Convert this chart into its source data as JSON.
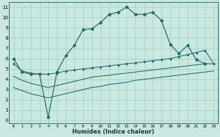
{
  "xlabel": "Humidex (Indice chaleur)",
  "background_color": "#c8e8e0",
  "grid_color": "#a0ccc8",
  "line_color": "#1e6e62",
  "xlim": [
    -0.5,
    23.5
  ],
  "ylim": [
    -0.3,
    11.5
  ],
  "xticks": [
    0,
    1,
    2,
    3,
    4,
    5,
    6,
    7,
    8,
    9,
    10,
    11,
    12,
    13,
    14,
    15,
    16,
    17,
    18,
    19,
    20,
    21,
    22,
    23
  ],
  "yticks": [
    0,
    1,
    2,
    3,
    4,
    5,
    6,
    7,
    8,
    9,
    10,
    11
  ],
  "line1_x": [
    0,
    1,
    2,
    3,
    4,
    5,
    6,
    7,
    8,
    9,
    10,
    11,
    12,
    13,
    14,
    15,
    16,
    17,
    18,
    19,
    20,
    21,
    22
  ],
  "line1_y": [
    6.0,
    4.7,
    4.5,
    4.5,
    0.3,
    4.7,
    6.3,
    7.3,
    8.8,
    8.9,
    9.5,
    10.3,
    10.5,
    11.0,
    10.3,
    10.3,
    10.5,
    9.7,
    7.4,
    6.5,
    7.3,
    5.9,
    5.5
  ],
  "line2_x": [
    0,
    1,
    2,
    3,
    4,
    5,
    6,
    7,
    8,
    9,
    10,
    11,
    12,
    13,
    14,
    15,
    16,
    17,
    18,
    19,
    20,
    21,
    22,
    23
  ],
  "line2_y": [
    5.5,
    4.8,
    4.6,
    4.5,
    4.5,
    4.6,
    4.8,
    4.9,
    5.0,
    5.1,
    5.2,
    5.3,
    5.4,
    5.5,
    5.6,
    5.7,
    5.8,
    5.9,
    6.0,
    6.2,
    6.4,
    6.6,
    6.8,
    5.5
  ],
  "line3_x": [
    0,
    1,
    2,
    3,
    4,
    5,
    6,
    7,
    8,
    9,
    10,
    11,
    12,
    13,
    14,
    15,
    16,
    17,
    18,
    19,
    20,
    21,
    22,
    23
  ],
  "line3_y": [
    4.3,
    3.9,
    3.6,
    3.4,
    3.2,
    3.4,
    3.6,
    3.8,
    4.0,
    4.2,
    4.3,
    4.4,
    4.5,
    4.6,
    4.7,
    4.8,
    4.9,
    5.0,
    5.1,
    5.2,
    5.3,
    5.4,
    5.5,
    5.5
  ],
  "line4_x": [
    0,
    1,
    2,
    3,
    4,
    5,
    6,
    7,
    8,
    9,
    10,
    11,
    12,
    13,
    14,
    15,
    16,
    17,
    18,
    19,
    20,
    21,
    22,
    23
  ],
  "line4_y": [
    3.2,
    2.9,
    2.6,
    2.4,
    2.2,
    2.4,
    2.6,
    2.8,
    3.0,
    3.2,
    3.3,
    3.5,
    3.6,
    3.7,
    3.9,
    4.0,
    4.1,
    4.2,
    4.3,
    4.4,
    4.5,
    4.6,
    4.7,
    4.8
  ]
}
